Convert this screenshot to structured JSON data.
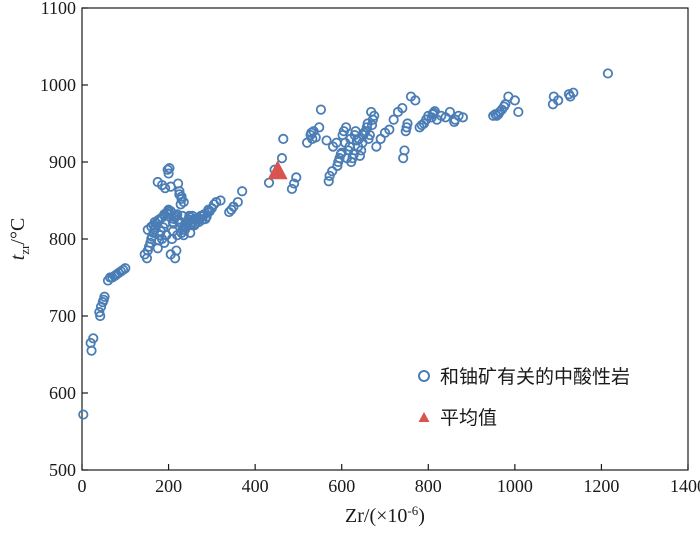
{
  "chart_data": {
    "type": "scatter",
    "xlabel": "Zr/(×10⁻⁶)",
    "ylabel": "t_zr/°C",
    "xlim": [
      0,
      1400
    ],
    "ylim": [
      500,
      1100
    ],
    "xticks": [
      0,
      200,
      400,
      600,
      800,
      1000,
      1200,
      1400
    ],
    "yticks": [
      500,
      600,
      700,
      800,
      900,
      1000,
      1100
    ],
    "legend_position": "bottom-right",
    "colors": {
      "scatter": "#4a7db5",
      "mean": "#d9534f"
    },
    "series": [
      {
        "name": "和铀矿有关的中酸性岩",
        "marker": "open-circle",
        "x": [
          3,
          20,
          22,
          26,
          40,
          42,
          44,
          48,
          50,
          52,
          60,
          65,
          70,
          75,
          78,
          80,
          85,
          90,
          95,
          100,
          145,
          150,
          152,
          155,
          158,
          160,
          162,
          165,
          168,
          170,
          172,
          175,
          178,
          180,
          182,
          185,
          188,
          190,
          192,
          195,
          198,
          200,
          202,
          205,
          208,
          210,
          212,
          215,
          218,
          220,
          222,
          225,
          228,
          230,
          232,
          235,
          238,
          240,
          242,
          245,
          248,
          250,
          252,
          255,
          258,
          260,
          262,
          265,
          268,
          270,
          272,
          275,
          278,
          280,
          282,
          285,
          288,
          290,
          292,
          295,
          300,
          305,
          310,
          320,
          340,
          345,
          350,
          360,
          370,
          432,
          445,
          462,
          465,
          485,
          490,
          495,
          520,
          528,
          530,
          532,
          535,
          540,
          548,
          552,
          565,
          570,
          572,
          578,
          580,
          588,
          590,
          592,
          595,
          598,
          600,
          602,
          605,
          608,
          610,
          612,
          615,
          618,
          620,
          622,
          625,
          628,
          630,
          632,
          635,
          638,
          640,
          642,
          645,
          648,
          650,
          652,
          655,
          658,
          660,
          662,
          665,
          668,
          670,
          672,
          675,
          680,
          690,
          700,
          710,
          720,
          730,
          740,
          742,
          745,
          748,
          750,
          752,
          760,
          770,
          780,
          785,
          790,
          795,
          800,
          808,
          810,
          812,
          815,
          820,
          830,
          840,
          850,
          860,
          862,
          870,
          880,
          950,
          955,
          958,
          962,
          965,
          970,
          975,
          978,
          985,
          1000,
          1008,
          1088,
          1090,
          1100,
          1125,
          1128,
          1135,
          1215,
          152,
          160,
          165,
          168,
          175,
          180,
          185,
          190,
          195,
          198,
          200,
          202,
          205,
          210,
          212,
          215,
          218,
          220,
          225,
          230,
          232,
          235,
          238,
          240,
          245,
          248,
          250,
          255,
          175,
          185,
          192,
          205,
          222,
          225,
          230,
          235
        ],
        "y": [
          572,
          665,
          655,
          671,
          705,
          700,
          712,
          718,
          721,
          725,
          746,
          750,
          750,
          752,
          753,
          754,
          756,
          758,
          760,
          762,
          780,
          775,
          785,
          790,
          795,
          800,
          803,
          808,
          812,
          815,
          820,
          788,
          798,
          805,
          810,
          800,
          815,
          795,
          820,
          805,
          890,
          885,
          892,
          780,
          800,
          810,
          820,
          775,
          785,
          805,
          825,
          862,
          845,
          855,
          830,
          805,
          812,
          815,
          820,
          825,
          830,
          808,
          818,
          822,
          825,
          818,
          820,
          825,
          828,
          822,
          826,
          830,
          825,
          830,
          832,
          826,
          829,
          835,
          838,
          836,
          840,
          845,
          848,
          850,
          835,
          838,
          842,
          848,
          862,
          873,
          890,
          905,
          930,
          865,
          872,
          880,
          925,
          935,
          938,
          930,
          940,
          932,
          945,
          968,
          928,
          875,
          882,
          888,
          920,
          925,
          895,
          900,
          905,
          910,
          912,
          935,
          940,
          925,
          945,
          905,
          915,
          920,
          930,
          900,
          905,
          910,
          935,
          940,
          928,
          920,
          930,
          908,
          915,
          925,
          935,
          938,
          940,
          945,
          950,
          930,
          935,
          965,
          948,
          955,
          960,
          920,
          930,
          938,
          942,
          955,
          965,
          970,
          905,
          915,
          940,
          945,
          950,
          985,
          980,
          945,
          948,
          950,
          955,
          960,
          958,
          962,
          964,
          966,
          955,
          960,
          958,
          965,
          952,
          955,
          960,
          958,
          960,
          962,
          960,
          962,
          965,
          968,
          972,
          975,
          985,
          980,
          965,
          975,
          985,
          980,
          988,
          985,
          990,
          1015,
          812,
          816,
          818,
          822,
          824,
          826,
          828,
          832,
          834,
          836,
          838,
          832,
          836,
          822,
          826,
          828,
          830,
          832,
          822,
          808,
          812,
          815,
          818,
          820,
          822,
          825,
          828,
          830,
          874,
          870,
          866,
          868,
          872,
          858,
          852,
          848
        ]
      },
      {
        "name": "平均值",
        "marker": "filled-triangle",
        "x": [
          452
        ],
        "y": [
          888
        ]
      }
    ]
  }
}
